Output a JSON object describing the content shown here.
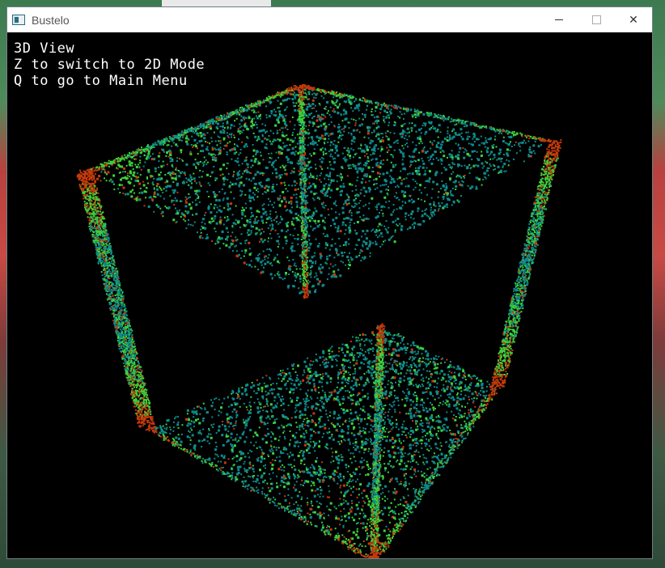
{
  "window": {
    "title": "Bustelo"
  },
  "hud": {
    "line1": "3D View",
    "line2": "Z to switch to 2D Mode",
    "line3": "Q to go to Main Menu"
  },
  "icons": {
    "app": "app-window-icon",
    "minimize": "minimize-icon",
    "maximize": "maximize-icon",
    "close": "close-icon"
  },
  "colors": {
    "teal": "#0f8a8a",
    "green": "#3cd23c",
    "red": "#c43a0a",
    "background": "#000000"
  }
}
